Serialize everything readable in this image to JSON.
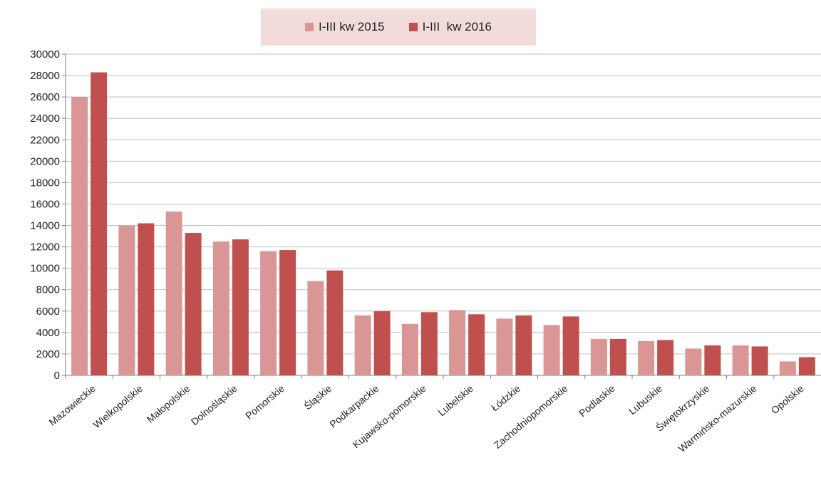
{
  "chart_data": {
    "type": "bar",
    "categories": [
      "Mazowieckie",
      "Wielkopolskie",
      "Małopolskie",
      "Dolnośląskie",
      "Pomorskie",
      "Śląskie",
      "Podkarpackie",
      "Kujawsko-pomorskie",
      "Lubelskie",
      "Łódzkie",
      "Zachodniopomorskie",
      "Podlaskie",
      "Lubuskie",
      "Świętokrzyskie",
      "Warmińsko-mazurskie",
      "Opolskie"
    ],
    "series": [
      {
        "name": "I-III kw 2015",
        "color": "#d99694",
        "values": [
          26000,
          14000,
          15300,
          12500,
          11600,
          8800,
          5600,
          4800,
          6100,
          5300,
          4700,
          3400,
          3200,
          2500,
          2800,
          1300
        ]
      },
      {
        "name": "I-III  kw 2016",
        "color": "#c0504d",
        "values": [
          28300,
          14200,
          13300,
          12700,
          11700,
          9800,
          6000,
          5900,
          5700,
          5600,
          5500,
          3400,
          3300,
          2800,
          2700,
          1700
        ]
      }
    ],
    "ylim": [
      0,
      30000
    ],
    "yticks": [
      "0",
      "2000",
      "4000",
      "6000",
      "8000",
      "10000",
      "12000",
      "14000",
      "16000",
      "18000",
      "20000",
      "22000",
      "24000",
      "26000",
      "28000",
      "30000"
    ],
    "grid": true,
    "legend_position": "top-center",
    "title": "",
    "xlabel": "",
    "ylabel": ""
  }
}
